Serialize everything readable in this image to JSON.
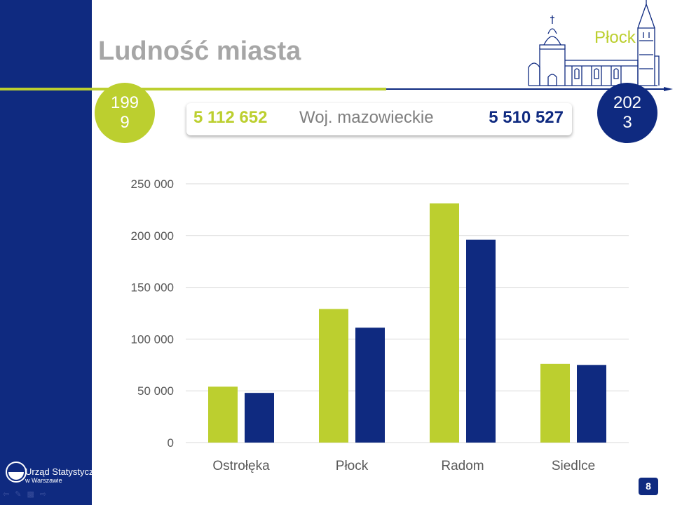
{
  "slide": {
    "title": "Ludność miasta",
    "city": "Płock",
    "year_start": "1999",
    "year_end": "2023",
    "page_number": "8"
  },
  "summary": {
    "value_start": "5 112 652",
    "label": "Woj. mazowieckie",
    "value_end": "5 510 527"
  },
  "logo": {
    "line1": "Urząd Statystyczny",
    "line2": "w Warszawie"
  },
  "colors": {
    "brand_navy": "#0f2a80",
    "brand_lime": "#bccf2f",
    "title_gray": "#a6a6a6"
  },
  "nav_icons": [
    "arrow-left-icon",
    "pen-icon",
    "menu-icon",
    "arrow-right-icon"
  ],
  "chart_data": {
    "type": "bar",
    "categories": [
      "Ostrołęka",
      "Płock",
      "Radom",
      "Siedlce"
    ],
    "series": [
      {
        "values": [
          54000,
          129000,
          231000,
          76000
        ],
        "color": "#bccf2f"
      },
      {
        "values": [
          48000,
          111000,
          196000,
          75000
        ],
        "color": "#0f2a80"
      }
    ],
    "ylim": [
      0,
      250000
    ],
    "yticks": [
      0,
      50000,
      100000,
      150000,
      200000,
      250000
    ],
    "ytick_labels": [
      "0",
      "50 000",
      "100 000",
      "150 000",
      "200 000",
      "250 000"
    ],
    "grid": true,
    "legend": false
  }
}
